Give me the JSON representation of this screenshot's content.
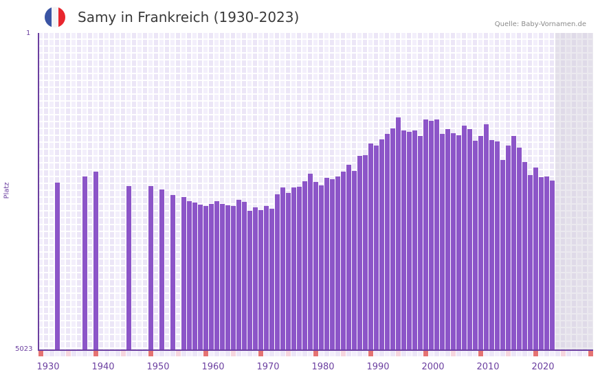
{
  "header": {
    "title": "Samy in Frankreich (1930-2023)",
    "source": "Quelle: Baby-Vornamen.de",
    "flag": {
      "icon": "france-flag-icon",
      "colors": [
        "#3a54a4",
        "#f4f4f6",
        "#e8262e"
      ]
    }
  },
  "axis": {
    "y_top_label": "1",
    "y_bottom_label": "5023",
    "y_title": "Platz",
    "x_labels": [
      "1930",
      "1940",
      "1950",
      "1960",
      "1970",
      "1980",
      "1990",
      "2000",
      "2010",
      "2020"
    ]
  },
  "colors": {
    "bar": "#8c55c8",
    "axis": "#6b3fa0",
    "marker_red": "#e57373",
    "marker_pink": "#f6d6de"
  },
  "chart_data": {
    "type": "bar",
    "title": "Samy in Frankreich (1930-2023)",
    "xlabel": "",
    "ylabel": "Platz",
    "ylim": [
      5023,
      1
    ],
    "y_reversed": true,
    "grid": true,
    "legend": null,
    "x_range": [
      1928,
      2028
    ],
    "future_shaded_from": 2022,
    "categories": [
      1931,
      1936,
      1938,
      1944,
      1948,
      1950,
      1952,
      1954,
      1955,
      1956,
      1957,
      1958,
      1959,
      1960,
      1961,
      1962,
      1963,
      1964,
      1965,
      1966,
      1967,
      1968,
      1969,
      1970,
      1971,
      1972,
      1973,
      1974,
      1975,
      1976,
      1977,
      1978,
      1979,
      1980,
      1981,
      1982,
      1983,
      1984,
      1985,
      1986,
      1987,
      1988,
      1989,
      1990,
      1991,
      1992,
      1993,
      1994,
      1995,
      1996,
      1997,
      1998,
      1999,
      2000,
      2001,
      2002,
      2003,
      2004,
      2005,
      2006,
      2007,
      2008,
      2009,
      2010,
      2011,
      2012,
      2013,
      2014,
      2015,
      2016,
      2017,
      2018,
      2019,
      2020,
      2021
    ],
    "values": [
      2371,
      2272,
      2196,
      2425,
      2425,
      2479,
      2566,
      2599,
      2664,
      2686,
      2718,
      2740,
      2708,
      2664,
      2708,
      2729,
      2740,
      2642,
      2675,
      2816,
      2762,
      2805,
      2740,
      2784,
      2555,
      2447,
      2534,
      2447,
      2436,
      2349,
      2229,
      2360,
      2414,
      2295,
      2316,
      2273,
      2197,
      2088,
      2186,
      1947,
      1936,
      1751,
      1784,
      1686,
      1599,
      1512,
      1338,
      1545,
      1566,
      1545,
      1632,
      1371,
      1392,
      1371,
      1599,
      1523,
      1588,
      1621,
      1468,
      1523,
      1708,
      1632,
      1447,
      1697,
      1719,
      2012,
      1784,
      1632,
      1817,
      2045,
      2251,
      2131,
      2284,
      2273,
      2338
    ]
  }
}
